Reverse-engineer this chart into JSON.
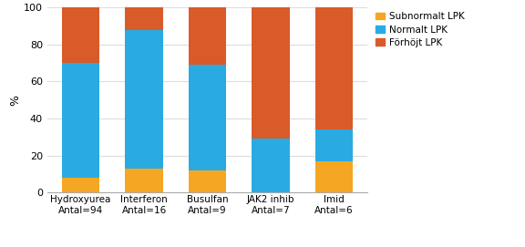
{
  "categories": [
    "Hydroxyurea\nAntal=94",
    "Interferon\nAntal=16",
    "Busulfan\nAntal=9",
    "JAK2 inhib\nAntal=7",
    "Imid\nAntal=6"
  ],
  "subnormalt": [
    8,
    13,
    12,
    0,
    17
  ],
  "normalt": [
    62,
    75,
    57,
    29,
    17
  ],
  "forhojt": [
    30,
    12,
    31,
    71,
    66
  ],
  "color_subnormalt": "#F5A623",
  "color_normalt": "#29ABE2",
  "color_forhojt": "#D95B2A",
  "ylabel": "%",
  "ylim": [
    0,
    100
  ],
  "yticks": [
    0,
    20,
    40,
    60,
    80,
    100
  ],
  "legend_labels": [
    "Subnormalt LPK",
    "Normalt LPK",
    "Förhöjt LPK"
  ],
  "bar_width": 0.6,
  "bg_color": "#FFFFFF",
  "grid_color": "#DDDDDD"
}
